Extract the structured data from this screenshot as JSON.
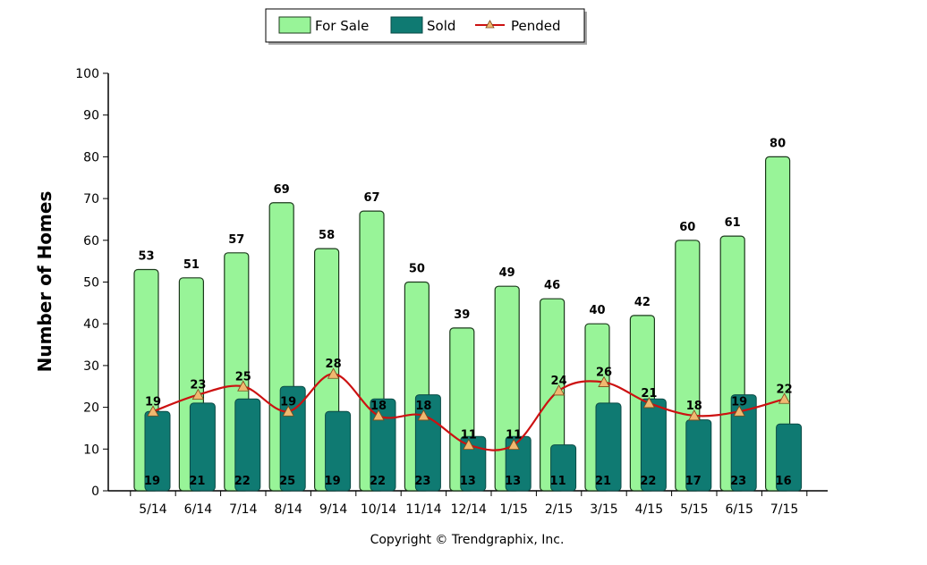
{
  "chart_data": {
    "type": "bar",
    "categories": [
      "5/14",
      "6/14",
      "7/14",
      "8/14",
      "9/14",
      "10/14",
      "11/14",
      "12/14",
      "1/15",
      "2/15",
      "3/15",
      "4/15",
      "5/15",
      "6/15",
      "7/15"
    ],
    "series": [
      {
        "name": "For Sale",
        "kind": "bar",
        "color": "#98f498",
        "values": [
          53,
          51,
          57,
          69,
          58,
          67,
          50,
          39,
          49,
          46,
          40,
          42,
          60,
          61,
          80
        ]
      },
      {
        "name": "Sold",
        "kind": "bar",
        "color": "#0f7a72",
        "values": [
          19,
          21,
          22,
          25,
          19,
          22,
          23,
          13,
          13,
          11,
          21,
          22,
          17,
          23,
          16
        ]
      },
      {
        "name": "Pended",
        "kind": "line",
        "color": "#cc1111",
        "marker_color": "#f0b870",
        "values": [
          19,
          23,
          25,
          19,
          28,
          18,
          18,
          11,
          11,
          24,
          26,
          21,
          18,
          19,
          22
        ]
      }
    ],
    "ylabel": "Number of Homes",
    "xlabel": "",
    "ylim": [
      0,
      100
    ],
    "yticks": [
      0,
      10,
      20,
      30,
      40,
      50,
      60,
      70,
      80,
      90,
      100
    ],
    "legend_position": "top-center",
    "grid": false
  },
  "footer": {
    "copyright": "Copyright © Trendgraphix, Inc."
  }
}
